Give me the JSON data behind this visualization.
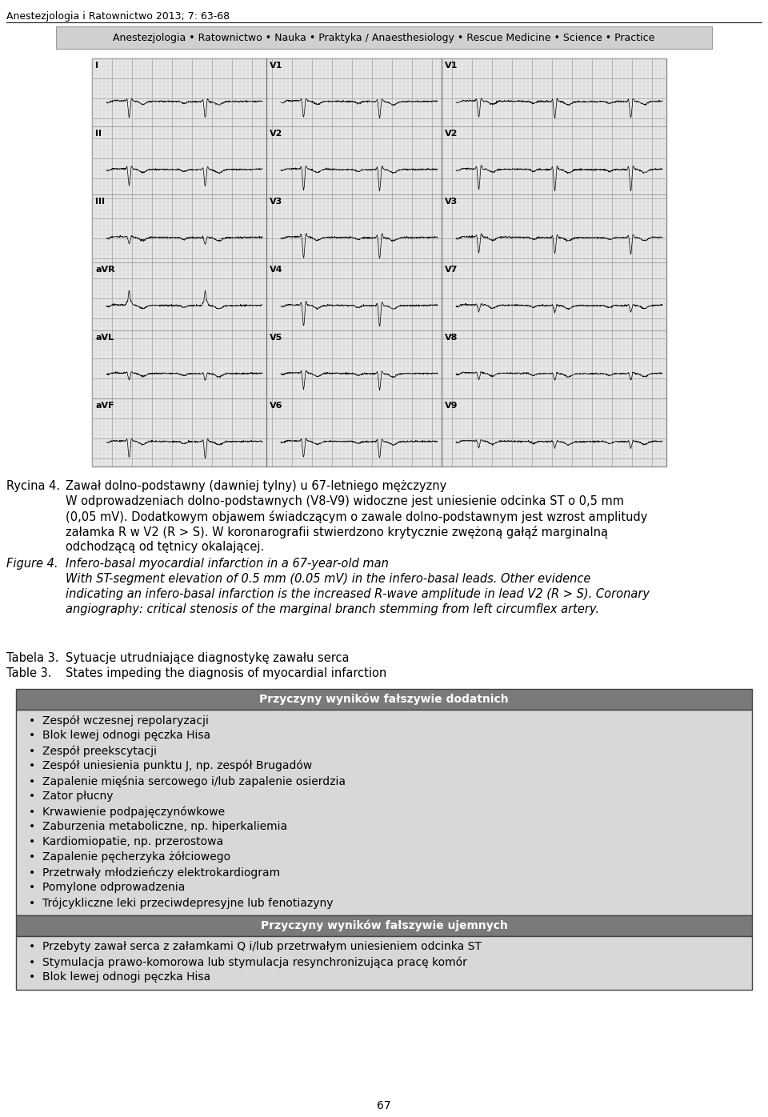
{
  "header_journal": "Anestezjologia i Ratownictwo 2013; 7: 63-68",
  "header_banner": "Anestezjologia • Ratownictwo • Nauka • Praktyka / Anaesthesiology • Rescue Medicine • Science • Practice",
  "caption_rycina_label": "Rycina 4.",
  "caption_rycina_lines": [
    "Zawał dolno-podstawny (dawniej tylny) u 67-letniego mężczyzny",
    "W odprowadzeniach dolno-podstawnych (V8-V9) widoczne jest uniesienie odcinka ST o 0,5 mm",
    "(0,05 mV). Dodatkowym objawem świadczącym o zawale dolno-podstawnym jest wzrost amplitudy",
    "załamka R w V2 (R > S). W koronarografii stwierdzono krytycznie zwężoną gałąź marginalną",
    "odchodzącą od tętnicy okalającej."
  ],
  "caption_figure_label": "Figure 4.",
  "caption_figure_lines": [
    "Infero-basal myocardial infarction in a 67-year-old man",
    "With ST-segment elevation of 0.5 mm (0.05 mV) in the infero-basal leads. Other evidence",
    "indicating an infero-basal infarction is the increased R-wave amplitude in lead V2 (R > S). Coronary",
    "angiography: critical stenosis of the marginal branch stemming from left circumflex artery."
  ],
  "tabela_label": "Tabela 3.",
  "tabela_text": "Sytuacje utrudniające diagnostykę zawału serca",
  "table_label": "Table 3.",
  "table_text": "States impeding the diagnosis of myocardial infarction",
  "section1_header": "Przyczyny wyników fałszywie dodatnich",
  "section1_items": [
    "Zespół wczesnej repolaryzacji",
    "Blok lewej odnogi pęczka Hisa",
    "Zespół preekscytacji",
    "Zespół uniesienia punktu J, np. zespół Brugadów",
    "Zapalenie mięśnia sercowego i/lub zapalenie osierdzia",
    "Zator płucny",
    "Krwawienie podpajęczynówkowe",
    "Zaburzenia metaboliczne, np. hiperkaliemia",
    "Kardiomiopatie, np. przerostowa",
    "Zapalenie pęcherzyka żółciowego",
    "Przetrwały młodzieńczy elektrokardiogram",
    "Pomylone odprowadzenia",
    "Trójcykliczne leki przeciwdepresyjne lub fenotiazyny"
  ],
  "section2_header": "Przyczyny wyników fałszywie ujemnych",
  "section2_items": [
    "Przebyty zawał serca z załamkami Q i/lub przetrwałym uniesieniem odcinka ST",
    "Stymulacja prawo-komorowa lub stymulacja resynchronizująca pracę komór",
    "Blok lewej odnogi pęczka Hisa"
  ],
  "page_number": "67",
  "header_bg_color": "#d0d0d0",
  "section_header_bg_color": "#7a7a7a",
  "section_header_text_color": "#ffffff",
  "section_body_bg_color": "#d8d8d8",
  "table_border_color": "#444444",
  "ecg_bg_color": "#e8e8e8",
  "ecg_grid_minor_color": "#cccccc",
  "ecg_grid_major_color": "#aaaaaa",
  "ecg_trace_color": "#111111"
}
